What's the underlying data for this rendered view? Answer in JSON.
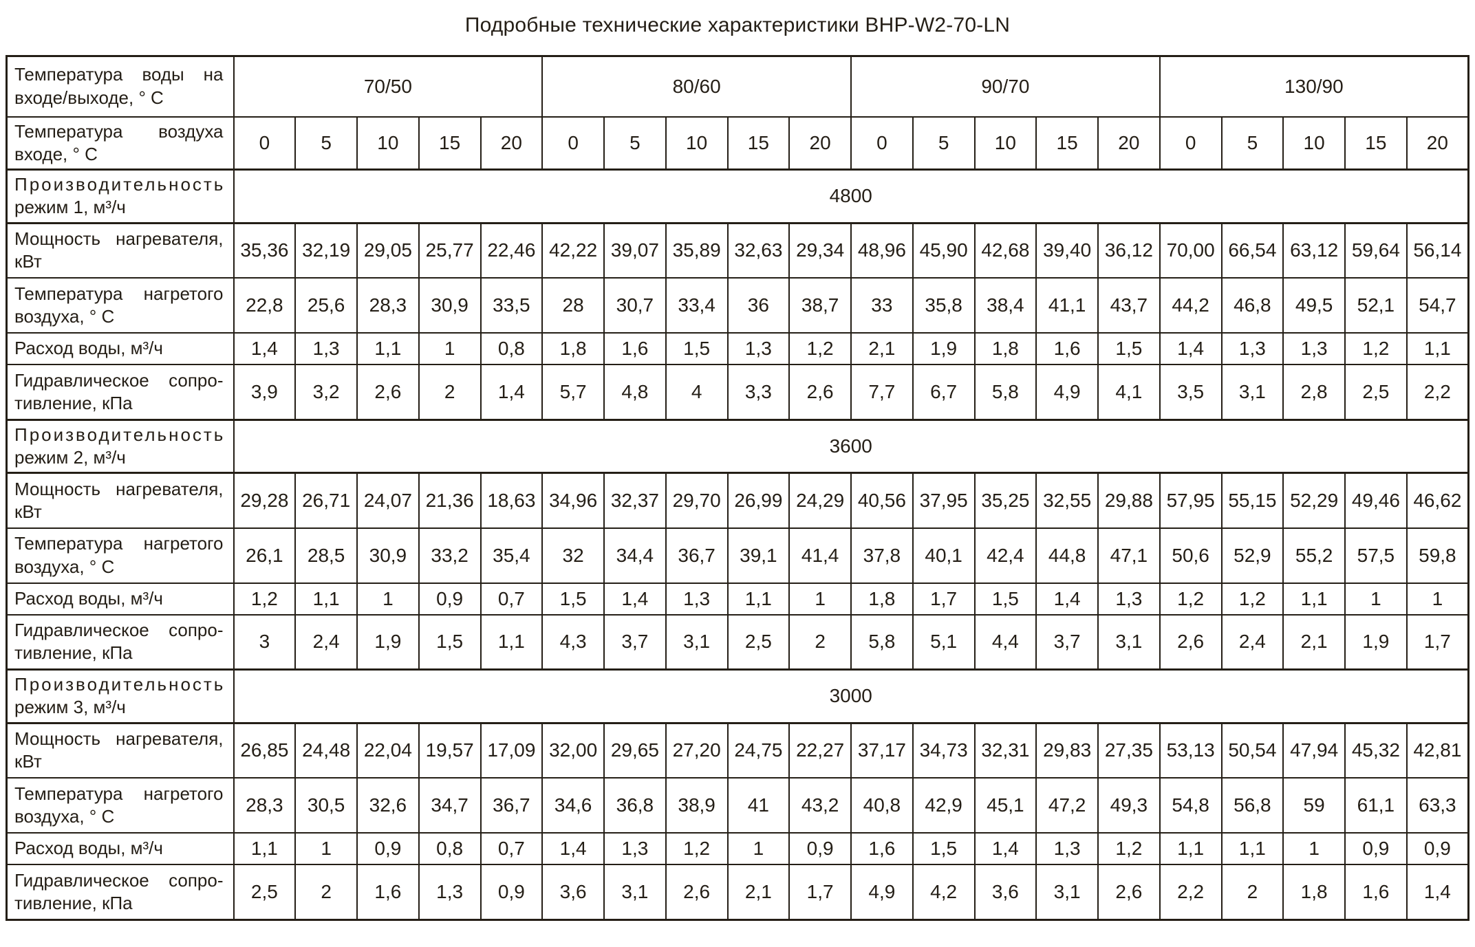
{
  "title": "Подробные технические характеристики BHP-W2-70-LN",
  "header": {
    "water_temp_label": "Температура воды на входе/выходе, ° С",
    "air_temp_label": "Температура воздуха входе, ° С",
    "water_temp_groups": [
      "70/50",
      "80/60",
      "90/70",
      "130/90"
    ],
    "air_temp_values": [
      "0",
      "5",
      "10",
      "15",
      "20"
    ]
  },
  "sections": [
    {
      "capacity_label_line1": "Производительность",
      "capacity_label_line2": "режим 1, м³/ч",
      "capacity_value": "4800",
      "rows": [
        {
          "label": "Мощность нагревателя, кВт",
          "values": [
            "35,36",
            "32,19",
            "29,05",
            "25,77",
            "22,46",
            "42,22",
            "39,07",
            "35,89",
            "32,63",
            "29,34",
            "48,96",
            "45,90",
            "42,68",
            "39,40",
            "36,12",
            "70,00",
            "66,54",
            "63,12",
            "59,64",
            "56,14"
          ]
        },
        {
          "label": "Температура нагретого воздуха, ° С",
          "values": [
            "22,8",
            "25,6",
            "28,3",
            "30,9",
            "33,5",
            "28",
            "30,7",
            "33,4",
            "36",
            "38,7",
            "33",
            "35,8",
            "38,4",
            "41,1",
            "43,7",
            "44,2",
            "46,8",
            "49,5",
            "52,1",
            "54,7"
          ]
        },
        {
          "label": "Расход воды, м³/ч",
          "values": [
            "1,4",
            "1,3",
            "1,1",
            "1",
            "0,8",
            "1,8",
            "1,6",
            "1,5",
            "1,3",
            "1,2",
            "2,1",
            "1,9",
            "1,8",
            "1,6",
            "1,5",
            "1,4",
            "1,3",
            "1,3",
            "1,2",
            "1,1"
          ]
        },
        {
          "label": "Гидравлическое сопро­тивление, кПа",
          "values": [
            "3,9",
            "3,2",
            "2,6",
            "2",
            "1,4",
            "5,7",
            "4,8",
            "4",
            "3,3",
            "2,6",
            "7,7",
            "6,7",
            "5,8",
            "4,9",
            "4,1",
            "3,5",
            "3,1",
            "2,8",
            "2,5",
            "2,2"
          ]
        }
      ]
    },
    {
      "capacity_label_line1": "Производительность",
      "capacity_label_line2": "режим 2, м³/ч",
      "capacity_value": "3600",
      "rows": [
        {
          "label": "Мощность нагревателя, кВт",
          "values": [
            "29,28",
            "26,71",
            "24,07",
            "21,36",
            "18,63",
            "34,96",
            "32,37",
            "29,70",
            "26,99",
            "24,29",
            "40,56",
            "37,95",
            "35,25",
            "32,55",
            "29,88",
            "57,95",
            "55,15",
            "52,29",
            "49,46",
            "46,62"
          ]
        },
        {
          "label": "Температура нагретого воздуха, ° С",
          "values": [
            "26,1",
            "28,5",
            "30,9",
            "33,2",
            "35,4",
            "32",
            "34,4",
            "36,7",
            "39,1",
            "41,4",
            "37,8",
            "40,1",
            "42,4",
            "44,8",
            "47,1",
            "50,6",
            "52,9",
            "55,2",
            "57,5",
            "59,8"
          ]
        },
        {
          "label": "Расход воды, м³/ч",
          "values": [
            "1,2",
            "1,1",
            "1",
            "0,9",
            "0,7",
            "1,5",
            "1,4",
            "1,3",
            "1,1",
            "1",
            "1,8",
            "1,7",
            "1,5",
            "1,4",
            "1,3",
            "1,2",
            "1,2",
            "1,1",
            "1",
            "1"
          ]
        },
        {
          "label": "Гидравлическое сопро­тивление, кПа",
          "values": [
            "3",
            "2,4",
            "1,9",
            "1,5",
            "1,1",
            "4,3",
            "3,7",
            "3,1",
            "2,5",
            "2",
            "5,8",
            "5,1",
            "4,4",
            "3,7",
            "3,1",
            "2,6",
            "2,4",
            "2,1",
            "1,9",
            "1,7"
          ]
        }
      ]
    },
    {
      "capacity_label_line1": "Производительность",
      "capacity_label_line2": "режим 3, м³/ч",
      "capacity_value": "3000",
      "rows": [
        {
          "label": "Мощность нагревателя, кВт",
          "values": [
            "26,85",
            "24,48",
            "22,04",
            "19,57",
            "17,09",
            "32,00",
            "29,65",
            "27,20",
            "24,75",
            "22,27",
            "37,17",
            "34,73",
            "32,31",
            "29,83",
            "27,35",
            "53,13",
            "50,54",
            "47,94",
            "45,32",
            "42,81"
          ]
        },
        {
          "label": "Температура нагретого воздуха, ° С",
          "values": [
            "28,3",
            "30,5",
            "32,6",
            "34,7",
            "36,7",
            "34,6",
            "36,8",
            "38,9",
            "41",
            "43,2",
            "40,8",
            "42,9",
            "45,1",
            "47,2",
            "49,3",
            "54,8",
            "56,8",
            "59",
            "61,1",
            "63,3"
          ]
        },
        {
          "label": "Расход воды, м³/ч",
          "values": [
            "1,1",
            "1",
            "0,9",
            "0,8",
            "0,7",
            "1,4",
            "1,3",
            "1,2",
            "1",
            "0,9",
            "1,6",
            "1,5",
            "1,4",
            "1,3",
            "1,2",
            "1,1",
            "1,1",
            "1",
            "0,9",
            "0,9"
          ]
        },
        {
          "label": "Гидравлическое сопро­тивление, кПа",
          "values": [
            "2,5",
            "2",
            "1,6",
            "1,3",
            "0,9",
            "3,6",
            "3,1",
            "2,6",
            "2,1",
            "1,7",
            "4,9",
            "4,2",
            "3,6",
            "3,1",
            "2,6",
            "2,2",
            "2",
            "1,8",
            "1,6",
            "1,4"
          ]
        }
      ]
    }
  ]
}
